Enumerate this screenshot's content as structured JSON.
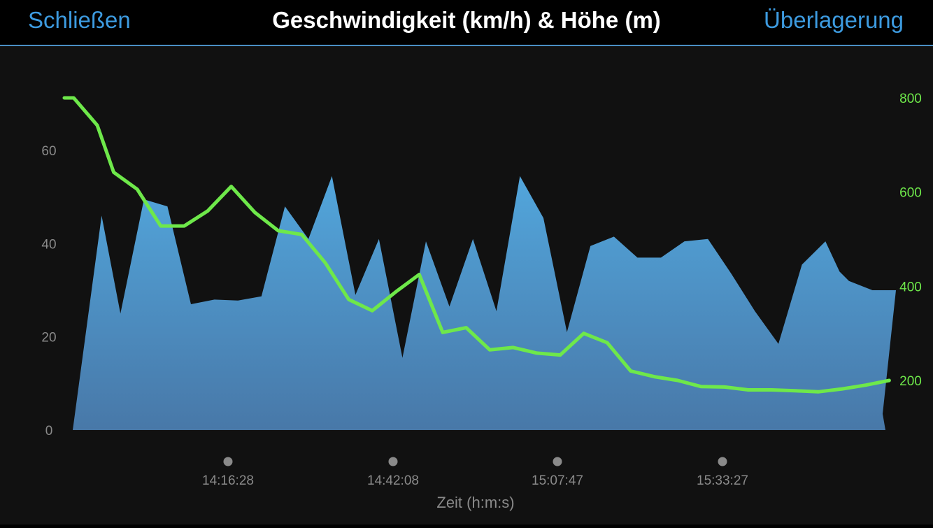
{
  "header": {
    "close_label": "Schließen",
    "title": "Geschwindigkeit (km/h) & Höhe (m)",
    "overlay_label": "Überlagerung"
  },
  "colors": {
    "accent": "#3d9be0",
    "speed_fill_top": "#52a6dc",
    "speed_fill_bottom": "#4878a8",
    "elevation_line": "#6ee84a",
    "background": "#111111"
  },
  "chart_data": {
    "type": "area",
    "title": "Geschwindigkeit (km/h) & Höhe (m)",
    "xlabel": "Zeit (h:m:s)",
    "x_tick_labels": [
      "14:16:28",
      "14:42:08",
      "15:07:47",
      "15:33:27"
    ],
    "y_left": {
      "ticks": [
        "0",
        "20",
        "40",
        "60"
      ],
      "ylim": [
        0,
        72
      ]
    },
    "y_right": {
      "ticks": [
        "200",
        "400",
        "600",
        "800"
      ],
      "ylim": [
        100,
        800
      ]
    },
    "series": [
      {
        "axis": "left",
        "style": "area",
        "t": [
          0,
          1.2,
          2,
          3,
          4,
          5,
          6,
          7,
          8,
          9,
          10,
          11,
          12,
          13,
          14,
          15,
          16,
          17,
          18,
          19,
          20,
          21,
          22,
          23,
          24,
          25,
          26,
          27,
          28,
          29,
          30,
          31,
          32,
          32.6,
          33,
          34,
          35,
          35.3
        ],
        "values": [
          0,
          46,
          25,
          49.5,
          48,
          27,
          28,
          27.8,
          28.7,
          48,
          41,
          54.5,
          29,
          41,
          15.5,
          40.5,
          26.5,
          41,
          25.5,
          54.5,
          45.5,
          21,
          39.5,
          41.5,
          37,
          37,
          40.5,
          41,
          33.5,
          25.5,
          18.5,
          35.5,
          40.5,
          34,
          32,
          30,
          30,
          3.5
        ]
      },
      {
        "axis": "right",
        "style": "line",
        "t": [
          0,
          0.4,
          1.4,
          2.1,
          3.1,
          4.1,
          5.1,
          6.1,
          7.1,
          8.1,
          9.1,
          10.1,
          11.1,
          12.1,
          13.1,
          14.1,
          15.1,
          16.1,
          17.1,
          18.1,
          19.1,
          20.1,
          21.1,
          22.1,
          23.1,
          24.1,
          25.1,
          26.1,
          27.1,
          28.1,
          29.1,
          30.1,
          31.1,
          32.1,
          33.1,
          34.1,
          35.1
        ],
        "values": [
          800,
          800,
          742,
          642,
          606,
          528,
          528,
          560,
          612,
          557,
          518,
          510,
          450,
          372,
          348,
          388,
          425,
          302,
          312,
          265,
          270,
          258,
          254,
          300,
          280,
          220,
          208,
          200,
          187,
          186,
          180,
          180,
          178,
          176,
          182,
          190,
          200
        ]
      }
    ]
  }
}
